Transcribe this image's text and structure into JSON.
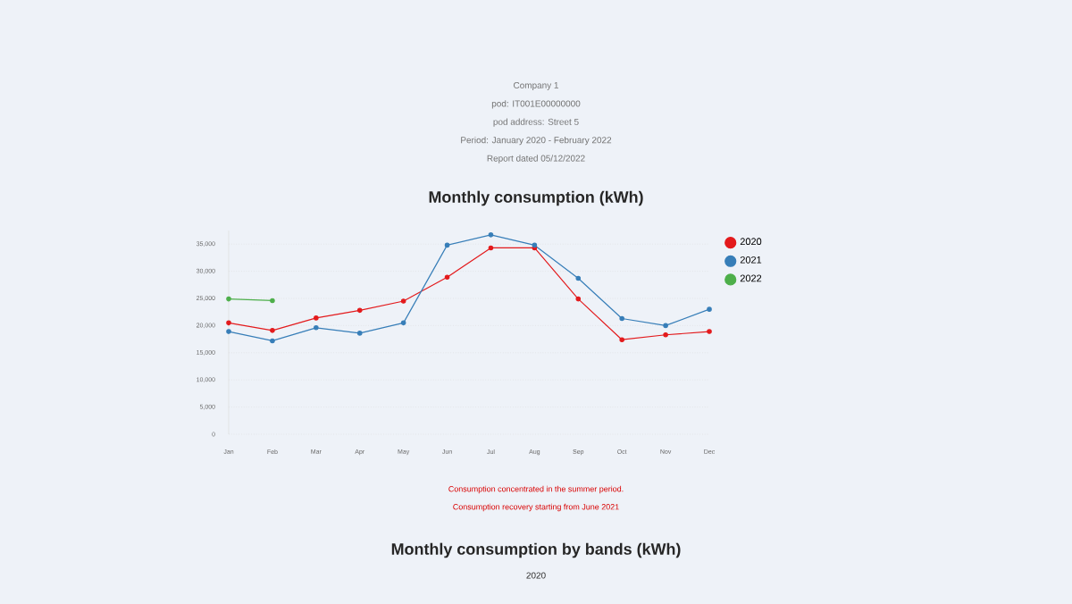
{
  "chart_data": [
    {
      "type": "other",
      "annotations": [
        "Company 1",
        "pod: IT001E00000000",
        "pod address: Street 5",
        "Period: January 2020 - February 2022",
        "Report dated 05/12/2022"
      ]
    },
    {
      "type": "line",
      "title": "Monthly consumption (kWh)",
      "categories": [
        "Jan",
        "Feb",
        "Mar",
        "Apr",
        "May",
        "Jun",
        "Jul",
        "Aug",
        "Sep",
        "Oct",
        "Nov",
        "Dec"
      ],
      "series": [
        {
          "name": "2020",
          "color": "#e31a1c",
          "values": [
            20500,
            19100,
            21400,
            22800,
            24500,
            28900,
            34300,
            34300,
            24900,
            17400,
            18300,
            18900
          ]
        },
        {
          "name": "2021",
          "color": "#377eb8",
          "values": [
            18900,
            17200,
            19600,
            18600,
            20500,
            34800,
            36700,
            34800,
            28700,
            21300,
            20000,
            23000
          ]
        },
        {
          "name": "2022",
          "color": "#4daf4a",
          "values": [
            24900,
            24600,
            null,
            null,
            null,
            null,
            null,
            null,
            null,
            null,
            null,
            null
          ]
        }
      ],
      "ylim": [
        0,
        37500
      ],
      "yticks": [
        0,
        {
          "value": 5000,
          "label": "5,000"
        },
        {
          "value": 10000,
          "label": "10,000"
        },
        {
          "value": 15000,
          "label": "15,000"
        },
        {
          "value": 20000,
          "label": "20,000"
        },
        {
          "value": 25000,
          "label": "25,000"
        },
        {
          "value": 30000,
          "label": "30,000"
        },
        {
          "value": 35000,
          "label": "35,000"
        }
      ],
      "grid": "y",
      "legend": "top right",
      "marker": "circle",
      "line_style": "solid",
      "annotations": [
        "Consumption concentrated in the summer period.",
        "Consumption recovery starting from June 2021"
      ]
    },
    {
      "type": "other",
      "title": "Monthly consumption by bands (kWh)",
      "subtitle": "2020"
    }
  ]
}
